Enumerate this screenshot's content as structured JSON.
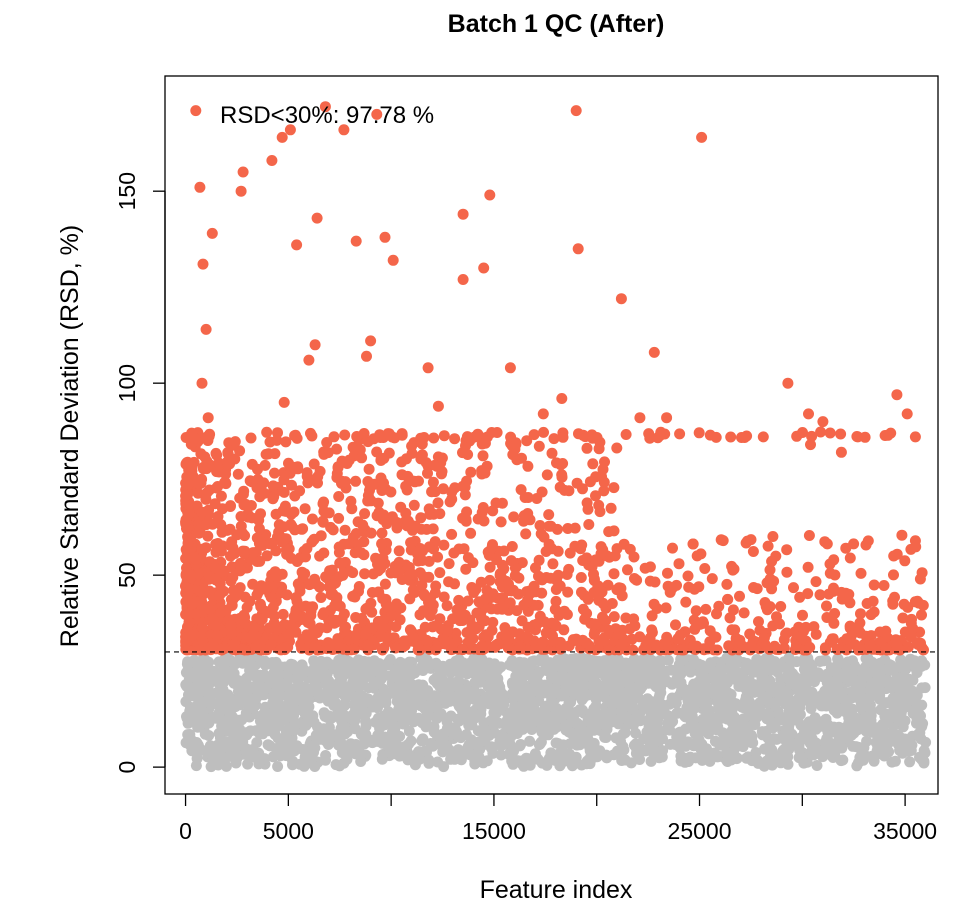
{
  "chart_data": {
    "type": "scatter",
    "title": "Batch 1 QC (After)",
    "xlabel": "Feature index",
    "ylabel": "Relative Standard Deviation (RSD, %)",
    "annotation": "RSD<30%:  97.78 %",
    "xlim": [
      -1000,
      36600
    ],
    "ylim": [
      -7,
      180
    ],
    "x_ticks": [
      0,
      5000,
      10000,
      15000,
      20000,
      25000,
      30000,
      35000
    ],
    "x_tick_labels": [
      "0",
      "5000",
      "",
      "15000",
      "",
      "25000",
      "",
      "35000"
    ],
    "y_ticks": [
      0,
      50,
      100,
      150
    ],
    "y_tick_labels": [
      "0",
      "50",
      "100",
      "150"
    ],
    "threshold": 30,
    "n_features": 36000,
    "colors": {
      "below": "#bebebe",
      "above": "#f4664a",
      "threshold_line": "#000000"
    },
    "series": [
      {
        "values_description": "features with RSD >= 30%",
        "points": [
          [
            500,
            171
          ],
          [
            700,
            151
          ],
          [
            850,
            131
          ],
          [
            1000,
            114
          ],
          [
            800,
            100
          ],
          [
            1100,
            91
          ],
          [
            1300,
            139
          ],
          [
            300,
            87
          ],
          [
            2700,
            150
          ],
          [
            2800,
            155
          ],
          [
            4200,
            158
          ],
          [
            4700,
            164
          ],
          [
            5100,
            166
          ],
          [
            5400,
            136
          ],
          [
            6400,
            143
          ],
          [
            6800,
            172
          ],
          [
            7700,
            166
          ],
          [
            8300,
            137
          ],
          [
            9300,
            170
          ],
          [
            9700,
            138
          ],
          [
            10100,
            132
          ],
          [
            9000,
            111
          ],
          [
            8800,
            107
          ],
          [
            6300,
            110
          ],
          [
            6000,
            106
          ],
          [
            4800,
            95
          ],
          [
            11800,
            104
          ],
          [
            12300,
            94
          ],
          [
            13500,
            144
          ],
          [
            14500,
            130
          ],
          [
            14800,
            149
          ],
          [
            13500,
            127
          ],
          [
            19000,
            171
          ],
          [
            19100,
            135
          ],
          [
            21200,
            122
          ],
          [
            22800,
            108
          ],
          [
            25100,
            164
          ],
          [
            29300,
            100
          ],
          [
            30300,
            92
          ],
          [
            34600,
            97
          ],
          [
            35100,
            92
          ],
          [
            15800,
            104
          ],
          [
            18300,
            96
          ],
          [
            17400,
            92
          ],
          [
            22100,
            91
          ],
          [
            23400,
            91
          ],
          [
            31000,
            90
          ],
          [
            31900,
            82
          ],
          [
            28100,
            86
          ],
          [
            32700,
            86
          ],
          [
            35500,
            86
          ],
          [
            34300,
            87
          ],
          [
            30400,
            84
          ]
        ]
      }
    ]
  }
}
